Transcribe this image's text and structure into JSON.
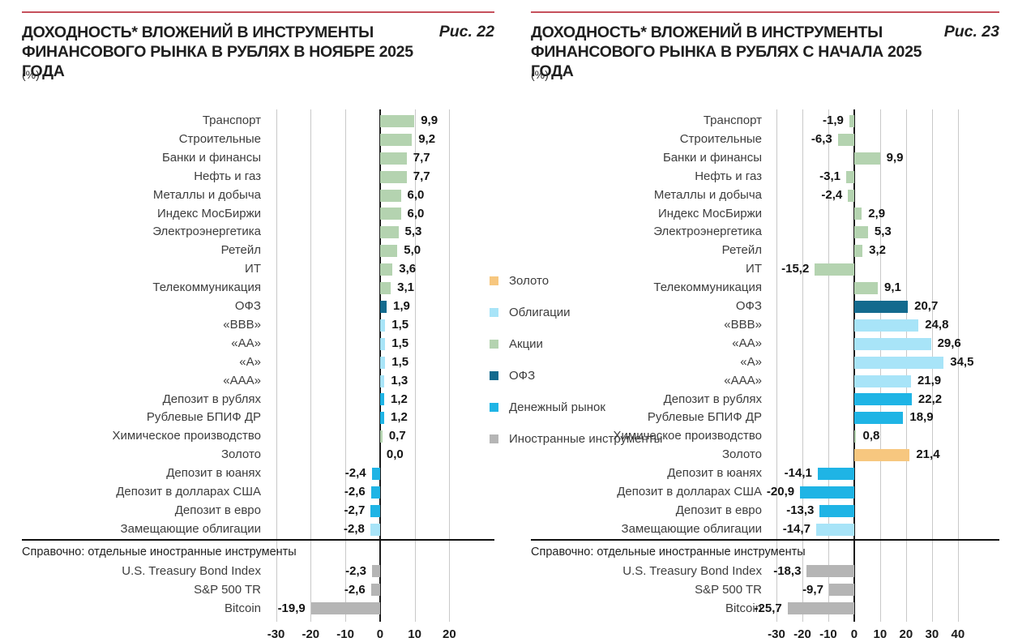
{
  "colors": {
    "gold": "#F7C77F",
    "bonds": "#A8E4F8",
    "equity": "#B4D3B0",
    "ofz": "#136A8E",
    "money": "#1FB4E5",
    "foreign": "#B5B5B5",
    "top_rule": "#C6505C"
  },
  "legend": {
    "items": [
      {
        "label": "Золото",
        "color_key": "gold"
      },
      {
        "label": "Облигации",
        "color_key": "bonds"
      },
      {
        "label": "Акции",
        "color_key": "equity"
      },
      {
        "label": "ОФЗ",
        "color_key": "ofz"
      },
      {
        "label": "Денежный рынок",
        "color_key": "money"
      },
      {
        "label": "Иностранные инструменты",
        "color_key": "foreign"
      }
    ]
  },
  "chart_data": [
    {
      "type": "bar",
      "orientation": "horizontal",
      "fig_label": "Рис. 22",
      "title_line1": "ДОХОДНОСТЬ* ВЛОЖЕНИЙ В ИНСТРУМЕНТЫ",
      "title_line2": "ФИНАНСОВОГО РЫНКА В РУБЛЯХ В НОЯБРЕ 2025 ГОДА",
      "unit": "(%)",
      "axis_ticks": [
        -30,
        -20,
        -10,
        0,
        10,
        20
      ],
      "axis_range": [
        -32,
        33
      ],
      "rows": [
        {
          "label": "Транспорт",
          "value": 9.9,
          "display": "9,9",
          "category": "equity"
        },
        {
          "label": "Строительные",
          "value": 9.2,
          "display": "9,2",
          "category": "equity"
        },
        {
          "label": "Банки и финансы",
          "value": 7.7,
          "display": "7,7",
          "category": "equity"
        },
        {
          "label": "Нефть и газ",
          "value": 7.7,
          "display": "7,7",
          "category": "equity"
        },
        {
          "label": "Металлы и добыча",
          "value": 6.0,
          "display": "6,0",
          "category": "equity"
        },
        {
          "label": "Индекс МосБиржи",
          "value": 6.0,
          "display": "6,0",
          "category": "equity"
        },
        {
          "label": "Электроэнергетика",
          "value": 5.3,
          "display": "5,3",
          "category": "equity"
        },
        {
          "label": "Ретейл",
          "value": 5.0,
          "display": "5,0",
          "category": "equity"
        },
        {
          "label": "ИТ",
          "value": 3.6,
          "display": "3,6",
          "category": "equity"
        },
        {
          "label": "Телекоммуникация",
          "value": 3.1,
          "display": "3,1",
          "category": "equity"
        },
        {
          "label": "ОФЗ",
          "value": 1.9,
          "display": "1,9",
          "category": "ofz"
        },
        {
          "label": "«ВВВ»",
          "value": 1.5,
          "display": "1,5",
          "category": "bonds"
        },
        {
          "label": "«АА»",
          "value": 1.5,
          "display": "1,5",
          "category": "bonds"
        },
        {
          "label": "«А»",
          "value": 1.5,
          "display": "1,5",
          "category": "bonds"
        },
        {
          "label": "«ААА»",
          "value": 1.3,
          "display": "1,3",
          "category": "bonds"
        },
        {
          "label": "Депозит в рублях",
          "value": 1.2,
          "display": "1,2",
          "category": "money"
        },
        {
          "label": "Рублевые БПИФ ДР",
          "value": 1.2,
          "display": "1,2",
          "category": "money"
        },
        {
          "label": "Химическое производство",
          "value": 0.7,
          "display": "0,7",
          "category": "equity"
        },
        {
          "label": "Золото",
          "value": 0.0,
          "display": "0,0",
          "category": "gold"
        },
        {
          "label": "Депозит в юанях",
          "value": -2.4,
          "display": "-2,4",
          "category": "money"
        },
        {
          "label": "Депозит в долларах США",
          "value": -2.6,
          "display": "-2,6",
          "category": "money"
        },
        {
          "label": "Депозит в евро",
          "value": -2.7,
          "display": "-2,7",
          "category": "money"
        },
        {
          "label": "Замещающие облигации",
          "value": -2.8,
          "display": "-2,8",
          "category": "bonds"
        }
      ],
      "reference_note": "Справочно: отдельные иностранные инструменты",
      "reference_rows": [
        {
          "label": "U.S. Treasury Bond Index",
          "value": -2.3,
          "display": "-2,3",
          "category": "foreign"
        },
        {
          "label": "S&P 500 TR",
          "value": -2.6,
          "display": "-2,6",
          "category": "foreign"
        },
        {
          "label": "Bitcoin",
          "value": -19.9,
          "display": "-19,9",
          "category": "foreign"
        }
      ]
    },
    {
      "type": "bar",
      "orientation": "horizontal",
      "fig_label": "Рис. 23",
      "title_line1": "ДОХОДНОСТЬ* ВЛОЖЕНИЙ В ИНСТРУМЕНТЫ",
      "title_line2": "ФИНАНСОВОГО РЫНКА В РУБЛЯХ С НАЧАЛА 2025 ГОДА",
      "unit": "(%)",
      "axis_ticks": [
        -30,
        -20,
        -10,
        0,
        10,
        20,
        30,
        40
      ],
      "axis_range": [
        -32.5,
        56
      ],
      "rows": [
        {
          "label": "Транспорт",
          "value": -1.9,
          "display": "-1,9",
          "category": "equity"
        },
        {
          "label": "Строительные",
          "value": -6.3,
          "display": "-6,3",
          "category": "equity"
        },
        {
          "label": "Банки и финансы",
          "value": 9.9,
          "display": "9,9",
          "category": "equity"
        },
        {
          "label": "Нефть и газ",
          "value": -3.1,
          "display": "-3,1",
          "category": "equity"
        },
        {
          "label": "Металлы и добыча",
          "value": -2.4,
          "display": "-2,4",
          "category": "equity"
        },
        {
          "label": "Индекс МосБиржи",
          "value": 2.9,
          "display": "2,9",
          "category": "equity"
        },
        {
          "label": "Электроэнергетика",
          "value": 5.3,
          "display": "5,3",
          "category": "equity"
        },
        {
          "label": "Ретейл",
          "value": 3.2,
          "display": "3,2",
          "category": "equity"
        },
        {
          "label": "ИТ",
          "value": -15.2,
          "display": "-15,2",
          "category": "equity"
        },
        {
          "label": "Телекоммуникация",
          "value": 9.1,
          "display": "9,1",
          "category": "equity"
        },
        {
          "label": "ОФЗ",
          "value": 20.7,
          "display": "20,7",
          "category": "ofz"
        },
        {
          "label": "«ВВВ»",
          "value": 24.8,
          "display": "24,8",
          "category": "bonds"
        },
        {
          "label": "«АА»",
          "value": 29.6,
          "display": "29,6",
          "category": "bonds"
        },
        {
          "label": "«А»",
          "value": 34.5,
          "display": "34,5",
          "category": "bonds"
        },
        {
          "label": "«ААА»",
          "value": 21.9,
          "display": "21,9",
          "category": "bonds"
        },
        {
          "label": "Депозит в рублях",
          "value": 22.2,
          "display": "22,2",
          "category": "money"
        },
        {
          "label": "Рублевые БПИФ ДР",
          "value": 18.9,
          "display": "18,9",
          "category": "money"
        },
        {
          "label": "Химическое производство",
          "value": 0.8,
          "display": "0,8",
          "category": "equity"
        },
        {
          "label": "Золото",
          "value": 21.4,
          "display": "21,4",
          "category": "gold"
        },
        {
          "label": "Депозит в юанях",
          "value": -14.1,
          "display": "-14,1",
          "category": "money"
        },
        {
          "label": "Депозит в долларах США",
          "value": -20.9,
          "display": "-20,9",
          "category": "money"
        },
        {
          "label": "Депозит в евро",
          "value": -13.3,
          "display": "-13,3",
          "category": "money"
        },
        {
          "label": "Замещающие облигации",
          "value": -14.7,
          "display": "-14,7",
          "category": "bonds"
        }
      ],
      "reference_note": "Справочно: отдельные иностранные инструменты",
      "reference_rows": [
        {
          "label": "U.S. Treasury Bond Index",
          "value": -18.3,
          "display": "-18,3",
          "category": "foreign"
        },
        {
          "label": "S&P 500 TR",
          "value": -9.7,
          "display": "-9,7",
          "category": "foreign"
        },
        {
          "label": "Bitcoin",
          "value": -25.7,
          "display": "-25,7",
          "category": "foreign"
        }
      ]
    }
  ]
}
